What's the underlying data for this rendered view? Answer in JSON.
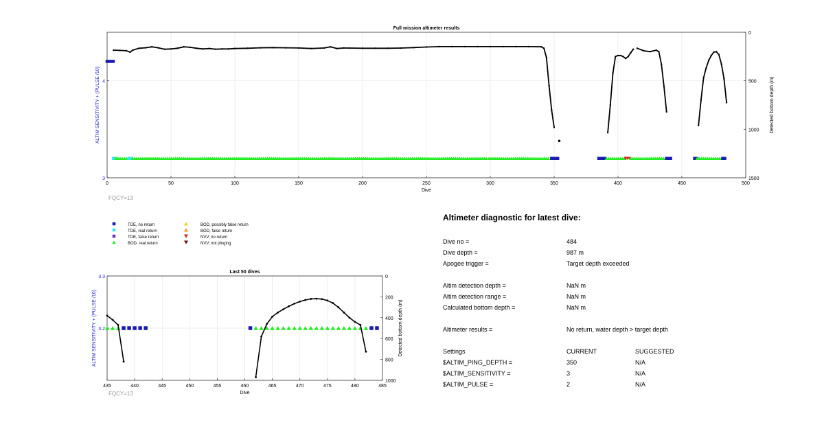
{
  "colors": {
    "tde_no_return": "#1a1ab3",
    "tde_real_return": "#33e6f2",
    "tde_false_return": "#7030c0",
    "bod_real_return": "#22ee22",
    "bod_possibly_false": "#f2d21a",
    "bod_false_return": "#f29a1a",
    "nvv_no_return": "#e02020",
    "nvv_not_pinging": "#701010",
    "left_axis_label": "#2222cc",
    "fqcy_text": "#999999",
    "depth_line": "#000000"
  },
  "chart_data": [
    {
      "type": "line",
      "title": "Full mission altimeter results",
      "xlabel": "Dive",
      "ylabel_left": "ALTIM SENSITIVITY + (PULSE /10)",
      "ylabel_right": "Detected bottom depth (m)",
      "xlim": [
        0,
        500
      ],
      "ylim_left": [
        3,
        4.5
      ],
      "ylim_right_reversed": [
        0,
        1500
      ],
      "x_ticks": [
        "0",
        "50",
        "100",
        "150",
        "200",
        "250",
        "300",
        "350",
        "400",
        "450",
        "500"
      ],
      "y_left_ticks": [
        "3",
        "4"
      ],
      "y_right_ticks": [
        "0",
        "500",
        "1000",
        "1500"
      ],
      "grid": true,
      "annotation": "FQCY=13",
      "depth_segments": [
        [
          [
            5,
            185
          ],
          [
            10,
            187
          ],
          [
            15,
            190
          ],
          [
            18,
            205
          ],
          [
            20,
            185
          ],
          [
            25,
            165
          ],
          [
            30,
            160
          ],
          [
            35,
            150
          ],
          [
            40,
            160
          ],
          [
            45,
            175
          ],
          [
            50,
            172
          ],
          [
            55,
            165
          ],
          [
            60,
            150
          ],
          [
            65,
            155
          ],
          [
            70,
            165
          ],
          [
            75,
            172
          ],
          [
            80,
            168
          ],
          [
            85,
            175
          ],
          [
            90,
            172
          ],
          [
            95,
            172
          ],
          [
            100,
            168
          ],
          [
            110,
            165
          ],
          [
            120,
            160
          ],
          [
            130,
            158
          ],
          [
            140,
            160
          ],
          [
            150,
            162
          ],
          [
            160,
            168
          ],
          [
            170,
            162
          ],
          [
            175,
            150
          ],
          [
            180,
            168
          ],
          [
            185,
            162
          ],
          [
            190,
            163
          ],
          [
            200,
            165
          ],
          [
            210,
            165
          ],
          [
            220,
            165
          ],
          [
            230,
            163
          ],
          [
            240,
            158
          ],
          [
            250,
            152
          ],
          [
            260,
            148
          ],
          [
            270,
            148
          ],
          [
            280,
            148
          ],
          [
            290,
            148
          ],
          [
            300,
            148
          ],
          [
            310,
            148
          ],
          [
            320,
            148
          ],
          [
            330,
            148
          ],
          [
            340,
            150
          ],
          [
            342,
            165
          ],
          [
            344,
            260
          ],
          [
            346,
            550
          ],
          [
            348,
            800
          ],
          [
            350,
            980
          ]
        ],
        [
          [
            392,
            1035
          ],
          [
            394,
            750
          ],
          [
            396,
            420
          ],
          [
            398,
            250
          ],
          [
            400,
            240
          ],
          [
            402,
            240
          ],
          [
            404,
            250
          ],
          [
            406,
            270
          ],
          [
            408,
            250
          ],
          [
            410,
            210
          ],
          [
            412,
            175
          ]
        ],
        [
          [
            415,
            165
          ],
          [
            420,
            190
          ],
          [
            425,
            200
          ],
          [
            430,
            185
          ],
          [
            432,
            200
          ],
          [
            434,
            330
          ],
          [
            436,
            560
          ],
          [
            438,
            820
          ]
        ],
        [
          [
            463,
            960
          ],
          [
            465,
            700
          ],
          [
            467,
            470
          ],
          [
            469,
            370
          ],
          [
            471,
            290
          ],
          [
            473,
            240
          ],
          [
            475,
            205
          ],
          [
            477,
            200
          ],
          [
            479,
            230
          ],
          [
            481,
            330
          ],
          [
            483,
            480
          ],
          [
            485,
            725
          ]
        ]
      ],
      "depth_isolated": [
        [
          354,
          1120
        ]
      ],
      "markers": [
        {
          "dive": [
            0,
            5
          ],
          "value": 4.2,
          "kind": "tde_no_return"
        },
        {
          "dive": [
            5,
            7
          ],
          "value": 3.2,
          "kind": "tde_real_return"
        },
        {
          "dive": [
            7,
            17
          ],
          "value": 3.2,
          "kind": "bod_real_return"
        },
        {
          "dive": [
            17,
            20
          ],
          "value": 3.2,
          "kind": "tde_real_return"
        },
        {
          "dive": [
            20,
            297
          ],
          "value": 3.2,
          "kind": "bod_real_return"
        },
        {
          "dive": [
            299,
            347
          ],
          "value": 3.2,
          "kind": "bod_real_return"
        },
        {
          "dive": [
            348,
            354
          ],
          "value": 3.2,
          "kind": "tde_no_return"
        },
        {
          "dive": [
            385,
            390
          ],
          "value": 3.2,
          "kind": "tde_no_return"
        },
        {
          "dive": [
            391,
            406
          ],
          "value": 3.2,
          "kind": "bod_real_return"
        },
        {
          "dive": [
            406,
            410
          ],
          "value": 3.2,
          "kind": "nvv_no_return"
        },
        {
          "dive": [
            410,
            437
          ],
          "value": 3.2,
          "kind": "bod_real_return"
        },
        {
          "dive": [
            438,
            442
          ],
          "value": 3.2,
          "kind": "tde_no_return"
        },
        {
          "dive": [
            460,
            462
          ],
          "value": 3.2,
          "kind": "tde_no_return"
        },
        {
          "dive": [
            462,
            482
          ],
          "value": 3.2,
          "kind": "bod_real_return"
        },
        {
          "dive": [
            482,
            485
          ],
          "value": 3.2,
          "kind": "tde_no_return"
        }
      ]
    },
    {
      "type": "line",
      "title": "Last 50 dives",
      "xlabel": "Dive",
      "ylabel_left": "ALTIM SENSITIVITY + (PULSE /10)",
      "ylabel_right": "Detected bottom depth (m)",
      "xlim": [
        435,
        485
      ],
      "ylim_left": [
        3.1,
        3.3
      ],
      "ylim_right_reversed": [
        0,
        1000
      ],
      "x_ticks": [
        "435",
        "440",
        "445",
        "450",
        "455",
        "460",
        "465",
        "470",
        "475",
        "480",
        "485"
      ],
      "y_left_ticks": [
        "3.2",
        "3.3"
      ],
      "y_right_ticks": [
        "0",
        "200",
        "400",
        "600",
        "800",
        "1000"
      ],
      "grid": true,
      "annotation": "FQCY=13",
      "depth_segments": [
        [
          [
            435,
            380
          ],
          [
            436,
            420
          ],
          [
            437,
            470
          ],
          [
            438,
            820
          ]
        ],
        [
          [
            462,
            970
          ],
          [
            463,
            580
          ],
          [
            464,
            460
          ],
          [
            465,
            390
          ],
          [
            466,
            350
          ],
          [
            467,
            320
          ],
          [
            468,
            290
          ],
          [
            469,
            265
          ],
          [
            470,
            245
          ],
          [
            471,
            230
          ],
          [
            472,
            220
          ],
          [
            473,
            218
          ],
          [
            474,
            222
          ],
          [
            475,
            235
          ],
          [
            476,
            260
          ],
          [
            477,
            300
          ],
          [
            478,
            350
          ],
          [
            479,
            400
          ],
          [
            480,
            440
          ],
          [
            481,
            470
          ],
          [
            482,
            725
          ]
        ]
      ],
      "tde_no_return": [
        438,
        439,
        440,
        441,
        442,
        461,
        483,
        484
      ],
      "bod_real_return": [
        435,
        436,
        437,
        438,
        462,
        463,
        464,
        465,
        466,
        467,
        468,
        469,
        470,
        471,
        472,
        473,
        474,
        475,
        476,
        477,
        478,
        479,
        480,
        481,
        482
      ]
    }
  ],
  "legend": {
    "col1": [
      "TDE, no return",
      "TDE, real return",
      "TDE, false return",
      "BOD, real return"
    ],
    "col2": [
      "BOD, possibly false return",
      "BOD, false return",
      "NVV, no return",
      "NVV, not pinging"
    ]
  },
  "diagnostic": {
    "title": "Altimeter diagnostic for latest dive:",
    "rows": [
      {
        "label": "Dive no =",
        "value": "484"
      },
      {
        "label": "Dive depth =",
        "value": "987 m"
      },
      {
        "label": "Apogee trigger =",
        "value": "Target depth exceeded"
      },
      {
        "label": "Altim detection depth =",
        "value": "NaN m"
      },
      {
        "label": "Altim detection range =",
        "value": "NaN m"
      },
      {
        "label": "Calculated bottom depth =",
        "value": "NaN m"
      },
      {
        "label": "Altimeter results =",
        "value": "No return, water depth > target depth"
      }
    ],
    "settings_header": {
      "label": "Settings",
      "current": "CURRENT",
      "suggested": "SUGGESTED"
    },
    "settings": [
      {
        "name": "$ALTIM_PING_DEPTH =",
        "current": "350",
        "suggested": "N/A"
      },
      {
        "name": "$ALTIM_SENSITIVITY =",
        "current": "3",
        "suggested": "N/A"
      },
      {
        "name": "$ALTIM_PULSE =",
        "current": "2",
        "suggested": "N/A"
      }
    ]
  }
}
